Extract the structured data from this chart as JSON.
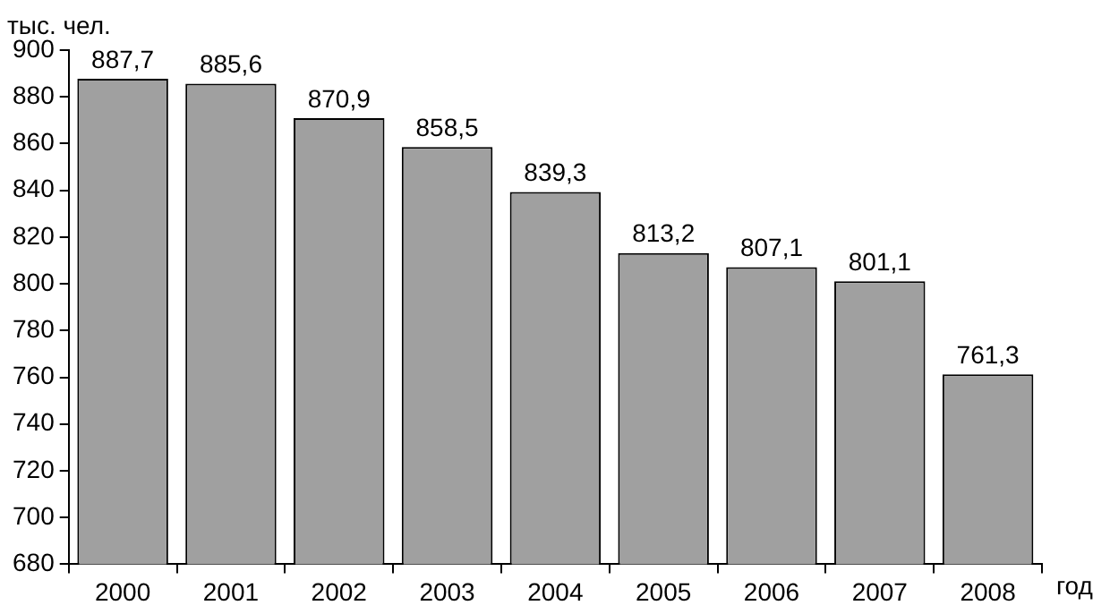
{
  "chart_data": {
    "type": "bar",
    "ylabel": "тыс. чел.",
    "xlabel": "год",
    "categories": [
      "2000",
      "2001",
      "2002",
      "2003",
      "2004",
      "2005",
      "2006",
      "2007",
      "2008"
    ],
    "values": [
      887.7,
      885.6,
      870.9,
      858.5,
      839.3,
      813.2,
      807.1,
      801.1,
      761.3
    ],
    "value_labels": [
      "887,7",
      "885,6",
      "870,9",
      "858,5",
      "839,3",
      "813,2",
      "807,1",
      "801,1",
      "761,3"
    ],
    "color": "#a0a0a0",
    "ylim": [
      680,
      900
    ],
    "yticks": [
      680,
      700,
      720,
      740,
      760,
      780,
      800,
      820,
      840,
      860,
      880,
      900
    ],
    "grid": false,
    "legend": false
  }
}
